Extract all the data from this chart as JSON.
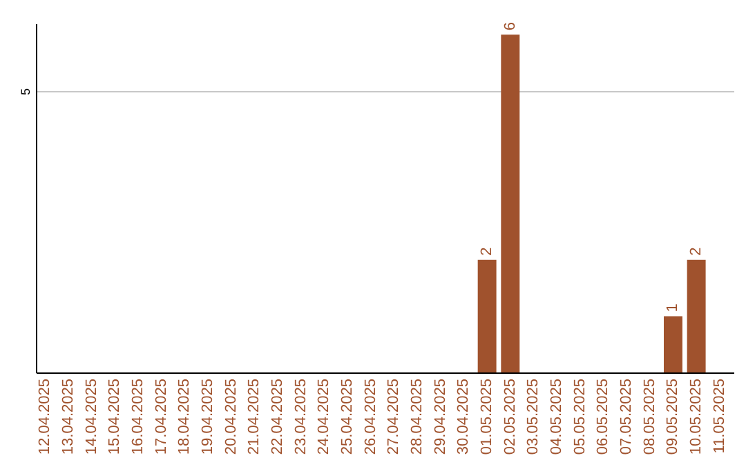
{
  "chart_data": {
    "type": "bar",
    "categories": [
      "12.04.2025",
      "13.04.2025",
      "14.04.2025",
      "15.04.2025",
      "16.04.2025",
      "17.04.2025",
      "18.04.2025",
      "19.04.2025",
      "20.04.2025",
      "21.04.2025",
      "22.04.2025",
      "23.04.2025",
      "24.04.2025",
      "25.04.2025",
      "26.04.2025",
      "27.04.2025",
      "28.04.2025",
      "29.04.2025",
      "30.04.2025",
      "01.05.2025",
      "02.05.2025",
      "03.05.2025",
      "04.05.2025",
      "05.05.2025",
      "06.05.2025",
      "07.05.2025",
      "08.05.2025",
      "09.05.2025",
      "10.05.2025",
      "11.05.2025"
    ],
    "values": [
      null,
      null,
      null,
      null,
      null,
      null,
      null,
      null,
      null,
      null,
      null,
      null,
      null,
      null,
      null,
      null,
      null,
      null,
      null,
      2,
      6,
      null,
      null,
      null,
      null,
      null,
      null,
      1,
      2,
      null
    ],
    "value_labels": [
      null,
      null,
      null,
      null,
      null,
      null,
      null,
      null,
      null,
      null,
      null,
      null,
      null,
      null,
      null,
      null,
      null,
      null,
      null,
      "2",
      "6",
      null,
      null,
      null,
      null,
      null,
      null,
      "1",
      "2",
      null
    ],
    "color": "#a0522d",
    "ylim": [
      0,
      6.2
    ],
    "yticks": [
      5
    ],
    "grid": "y"
  }
}
